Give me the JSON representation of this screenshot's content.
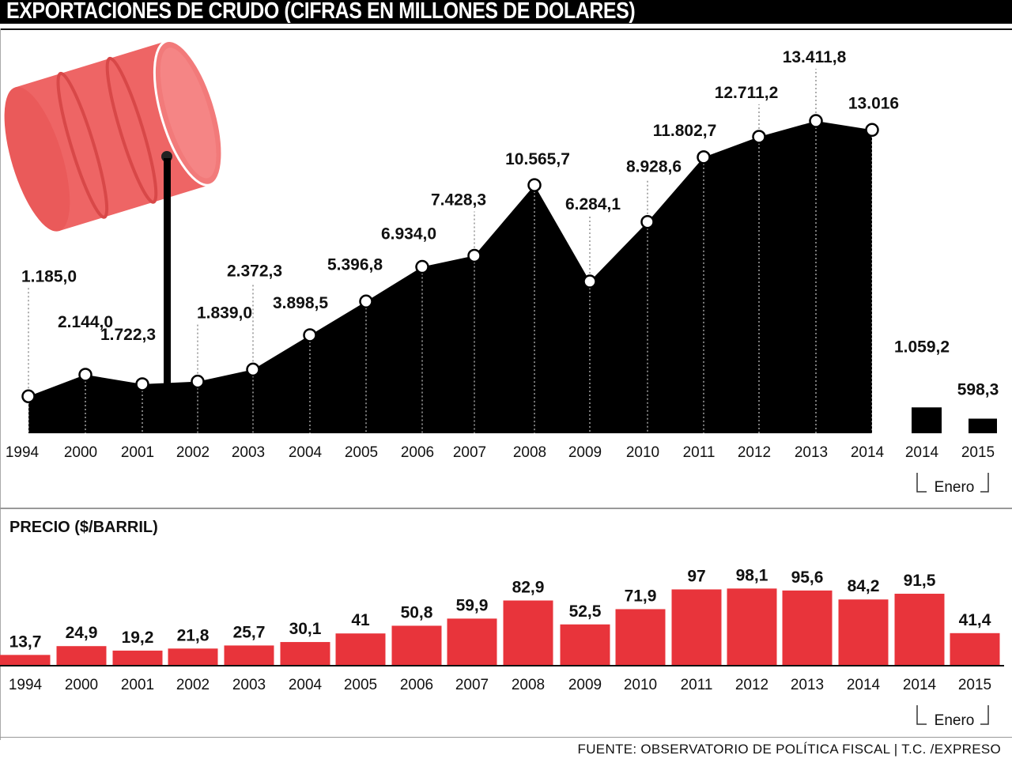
{
  "title": "EXPORTACIONES DE CRUDO (CIFRAS EN MILLONES DE DOLARES)",
  "colors": {
    "area": "#000000",
    "price_bar": "#e8343b",
    "barrel": "#f06a6a",
    "header": "#000000"
  },
  "chart_data": [
    {
      "type": "area",
      "categories": [
        "1994",
        "2000",
        "2001",
        "2002",
        "2003",
        "2004",
        "2005",
        "2006",
        "2007",
        "2008",
        "2009",
        "2010",
        "2011",
        "2012",
        "2013",
        "2014"
      ],
      "values": [
        1185.0,
        2144.0,
        1722.3,
        1839.0,
        2372.3,
        3898.5,
        5396.8,
        6934.0,
        7428.3,
        10565.7,
        6284.1,
        8928.6,
        11802.7,
        12711.2,
        13411.8,
        13016
      ],
      "value_labels": [
        "1.185,0",
        "2.144,0",
        "1.722,3",
        "1.839,0",
        "2.372,3",
        "3.898,5",
        "5.396,8",
        "6.934,0",
        "7.428,3",
        "10.565,7",
        "6.284,1",
        "8.928,6",
        "11.802,7",
        "12.711,2",
        "13.411,8",
        "13.016"
      ],
      "ylim": [
        0,
        14500
      ]
    },
    {
      "type": "bar",
      "categories": [
        "2014",
        "2015"
      ],
      "group_label": "Enero",
      "values": [
        1059.2,
        598.3
      ],
      "value_labels": [
        "1.059,2",
        "598,3"
      ]
    },
    {
      "type": "bar",
      "title": "PRECIO ($/BARRIL)",
      "categories": [
        "1994",
        "2000",
        "2001",
        "2002",
        "2003",
        "2004",
        "2005",
        "2006",
        "2007",
        "2008",
        "2009",
        "2010",
        "2011",
        "2012",
        "2013",
        "2014",
        "2014",
        "2015"
      ],
      "values": [
        13.7,
        24.9,
        19.2,
        21.8,
        25.7,
        30.1,
        41,
        50.8,
        59.9,
        82.9,
        52.5,
        71.9,
        97,
        98.1,
        95.6,
        84.2,
        91.5,
        41.4
      ],
      "value_labels": [
        "13,7",
        "24,9",
        "19,2",
        "21,8",
        "25,7",
        "30,1",
        "41",
        "50,8",
        "59,9",
        "82,9",
        "52,5",
        "71,9",
        "97",
        "98,1",
        "95,6",
        "84,2",
        "91,5",
        "41,4"
      ],
      "group_label": "Enero",
      "ylim": [
        0,
        100
      ]
    }
  ],
  "source": "FUENTE: OBSERVATORIO DE POLÍTICA FISCAL  |  T.C. /EXPRESO"
}
